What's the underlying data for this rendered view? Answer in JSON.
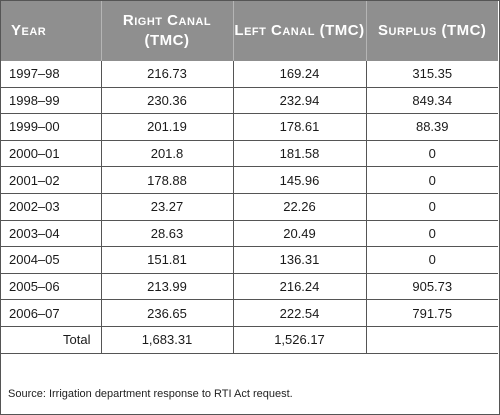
{
  "headers": {
    "year": "Year",
    "right_canal": "Right Canal (TMC)",
    "left_canal": "Left Canal (TMC)",
    "surplus": "Surplus (TMC)"
  },
  "rows": [
    {
      "year": "1997–98",
      "right": "216.73",
      "left": "169.24",
      "surplus": "315.35"
    },
    {
      "year": "1998–99",
      "right": "230.36",
      "left": "232.94",
      "surplus": "849.34"
    },
    {
      "year": "1999–00",
      "right": "201.19",
      "left": "178.61",
      "surplus": "88.39"
    },
    {
      "year": "2000–01",
      "right": "201.8",
      "left": "181.58",
      "surplus": "0"
    },
    {
      "year": "2001–02",
      "right": "178.88",
      "left": "145.96",
      "surplus": "0"
    },
    {
      "year": "2002–03",
      "right": "23.27",
      "left": "22.26",
      "surplus": "0"
    },
    {
      "year": "2003–04",
      "right": "28.63",
      "left": "20.49",
      "surplus": "0"
    },
    {
      "year": "2004–05",
      "right": "151.81",
      "left": "136.31",
      "surplus": "0"
    },
    {
      "year": "2005–06",
      "right": "213.99",
      "left": "216.24",
      "surplus": "905.73"
    },
    {
      "year": "2006–07",
      "right": "236.65",
      "left": "222.54",
      "surplus": "791.75"
    }
  ],
  "total": {
    "label": "Total",
    "right": "1,683.31",
    "left": "1,526.17",
    "surplus": ""
  },
  "source": "Source: Irrigation department response to RTI Act request.",
  "colors": {
    "header_bg": "#8f8f8f",
    "header_text": "#ffffff",
    "border": "#555555"
  }
}
